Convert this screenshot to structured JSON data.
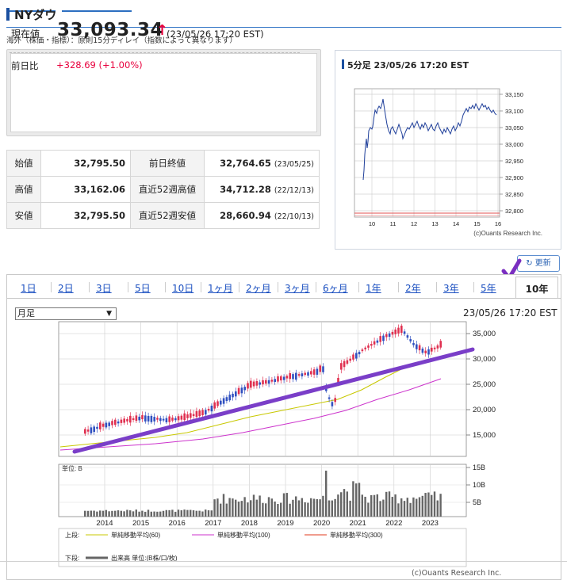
{
  "page": {
    "title": "NYダウ",
    "note": "海外（株価・指標）：原則15分ディレイ（指数によって異なります）"
  },
  "price": {
    "label_now": "現在値",
    "value": "33,093.34",
    "arrow": "↑",
    "time": "(23/05/26 17:20 EST)",
    "label_change": "前日比",
    "change": "+328.69 (+1.00%)"
  },
  "stats": [
    {
      "k1": "始値",
      "v1": "32,795.50",
      "k2": "前日終値",
      "v2": "32,764.65",
      "d2": "(23/05/25)"
    },
    {
      "k1": "高値",
      "v1": "33,162.06",
      "k2": "直近52週高値",
      "v2": "34,712.28",
      "d2": "(22/12/13)"
    },
    {
      "k1": "安値",
      "v1": "32,795.50",
      "k2": "直近52週安値",
      "v2": "28,660.94",
      "d2": "(22/10/13)"
    }
  ],
  "mini_chart": {
    "title": "5分足 23/05/26 17:20 EST",
    "credit": "(c)Ouants Research Inc.",
    "x_ticks": [
      "10",
      "11",
      "12",
      "13",
      "14",
      "15",
      "16"
    ],
    "y_ticks": [
      "33,150",
      "33,100",
      "33,050",
      "33,000",
      "32,950",
      "32,900",
      "32,850",
      "32,800"
    ]
  },
  "refresh_label": "更新",
  "tabs": [
    "1日",
    "2日",
    "3日",
    "5日",
    "10日",
    "1ヶ月",
    "2ヶ月",
    "3ヶ月",
    "6ヶ月",
    "1年",
    "2年",
    "3年",
    "5年",
    "10年"
  ],
  "active_tab": "10年",
  "chart": {
    "select_value": "月足",
    "date": "23/05/26 17:20 EST",
    "unit_label": "単位: B",
    "y_ticks": [
      "35,000",
      "30,000",
      "25,000",
      "20,000",
      "15,000"
    ],
    "vol_ticks": [
      "15B",
      "10B",
      "5B"
    ],
    "x_years": [
      "2014",
      "2015",
      "2016",
      "2017",
      "2018",
      "2019",
      "2020",
      "2021",
      "2022",
      "2023"
    ],
    "legend_upper_label": "上段:",
    "legend_items": [
      {
        "name": "単純移動平均(60)",
        "color": "#c8c800"
      },
      {
        "name": "単純移動平均(100)",
        "color": "#cc33cc"
      },
      {
        "name": "単純移動平均(300)",
        "color": "#e03a1e"
      }
    ],
    "legend_lower_label": "下段:",
    "legend_lower_item": "出来高 単位:(B株/口/枚)",
    "credit": "(c)Ouants Research Inc."
  },
  "colors": {
    "up": "#e03050",
    "down": "#3050c0",
    "trend": "#7a3ec8",
    "accent": "#1a4fa0"
  }
}
